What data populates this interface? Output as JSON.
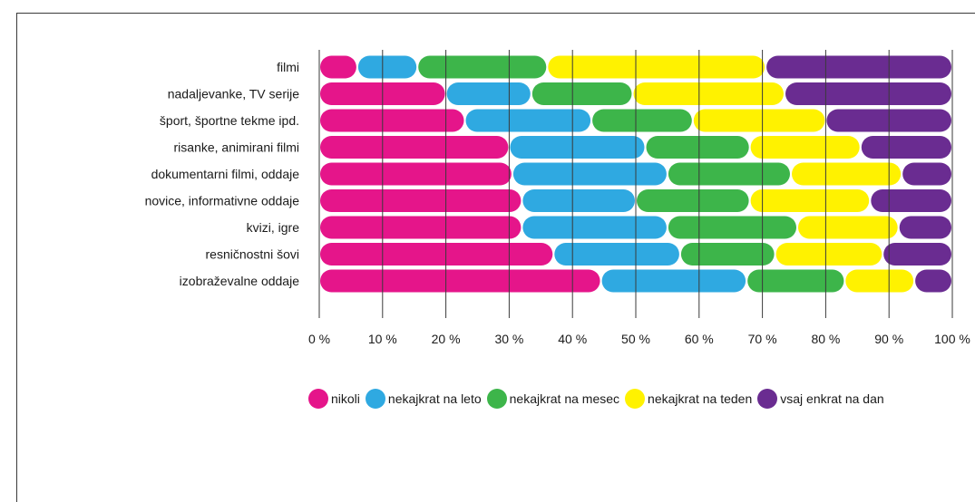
{
  "chart_data": {
    "type": "bar",
    "orientation": "horizontal",
    "stacked": true,
    "title": "",
    "xlabel": "",
    "ylabel": "",
    "xlim": [
      0,
      100
    ],
    "ticks": [
      "0 %",
      "10 %",
      "20 %",
      "30 %",
      "40 %",
      "50 %",
      "60 %",
      "70 %",
      "80 %",
      "90 %",
      "100 %"
    ],
    "grid": true,
    "legend_position": "bottom",
    "categories": [
      "filmi",
      "nadaljevanke, TV serije",
      "šport, športne tekme ipd.",
      "risanke, animirani filmi",
      "dokumentarni filmi, oddaje",
      "novice, informativne oddaje",
      "kvizi, igre",
      "resničnostni šovi",
      "izobraževalne oddaje"
    ],
    "series": [
      {
        "name": "nikoli",
        "color": "#e5158a",
        "values": [
          6,
          20,
          23,
          30,
          30.5,
          32,
          32,
          37,
          44.5
        ]
      },
      {
        "name": "nekajkrat na leto",
        "color": "#2fa9e1",
        "values": [
          9.5,
          13.5,
          20,
          21.5,
          24.5,
          18,
          23,
          20,
          23
        ]
      },
      {
        "name": "nekajkrat na mesec",
        "color": "#3db54a",
        "values": [
          20.5,
          16,
          16,
          16.5,
          19.5,
          18,
          20.5,
          15,
          15.5
        ]
      },
      {
        "name": "nekajkrat na teden",
        "color": "#fff200",
        "values": [
          34.5,
          24,
          21,
          17.5,
          17.5,
          19,
          16,
          17,
          11
        ]
      },
      {
        "name": "vsaj enkrat na dan",
        "color": "#6a2c91",
        "values": [
          29.5,
          26.5,
          20,
          14.5,
          8,
          13,
          8.5,
          11,
          6
        ]
      }
    ]
  }
}
